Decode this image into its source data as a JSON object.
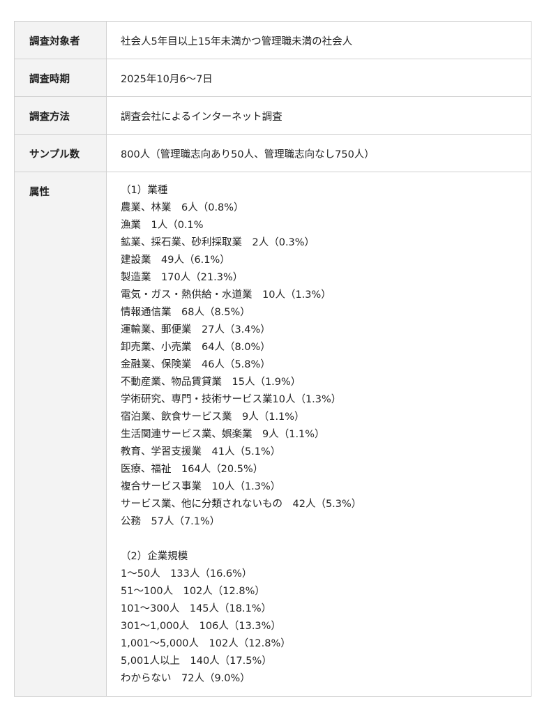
{
  "rows": [
    {
      "label": "調査対象者",
      "value": "社会人5年目以上15年未満かつ管理職未満の社会人"
    },
    {
      "label": "調査時期",
      "value": "2025年10月6〜7日"
    },
    {
      "label": "調査方法",
      "value": "調査会社によるインターネット調査"
    },
    {
      "label": "サンプル数",
      "value": "800人（管理職志向あり50人、管理職志向なし750人）"
    }
  ],
  "attributes": {
    "label": "属性",
    "lines": [
      "（1）業種",
      "農業、林業　6人（0.8%）",
      "漁業　1人（0.1%",
      "鉱業、採石業、砂利採取業　2人（0.3%）",
      "建設業　49人（6.1%）",
      "製造業　170人（21.3%）",
      "電気・ガス・熱供給・水道業　10人（1.3%）",
      "情報通信業　68人（8.5%）",
      "運輸業、郵便業　27人（3.4%）",
      "卸売業、小売業　64人（8.0%）",
      "金融業、保険業　46人（5.8%）",
      "不動産業、物品賃貸業　15人（1.9%）",
      "学術研究、専門・技術サービス業10人（1.3%）",
      "宿泊業、飲食サービス業　9人（1.1%）",
      "生活関連サービス業、娯楽業　9人（1.1%）",
      "教育、学習支援業　41人（5.1%）",
      "医療、福祉　164人（20.5%）",
      "複合サービス事業　10人（1.3%）",
      "サービス業、他に分類されないもの　42人（5.3%）",
      "公務　57人（7.1%）",
      "",
      "（2）企業規模",
      "1〜50人　133人（16.6%）",
      "51〜100人　102人（12.8%）",
      "101〜300人　145人（18.1%）",
      "301〜1,000人　106人（13.3%）",
      "1,001〜5,000人　102人（12.8%）",
      "5,001人以上　140人（17.5%）",
      "わからない　72人（9.0%）"
    ]
  }
}
